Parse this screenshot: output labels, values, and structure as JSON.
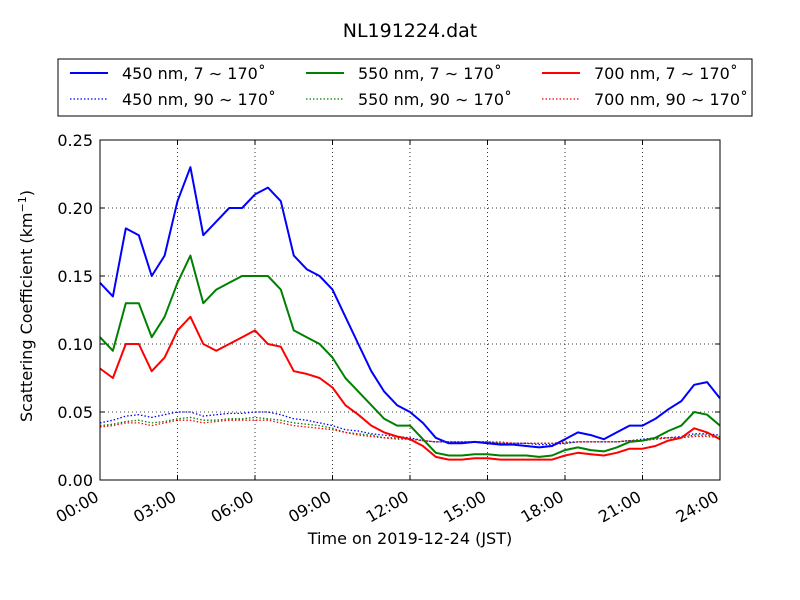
{
  "chart_data": {
    "type": "line",
    "title": "NL191224.dat",
    "xlabel": "Time on 2019-12-24 (JST)",
    "ylabel": "Scattering Coefficient (km",
    "ylabel_sup": "−1",
    "ylabel_close": ")",
    "xlim": [
      "00:00",
      "24:00"
    ],
    "ylim": [
      0.0,
      0.25
    ],
    "x_ticks": [
      "00:00",
      "03:00",
      "06:00",
      "09:00",
      "12:00",
      "15:00",
      "18:00",
      "21:00",
      "24:00"
    ],
    "y_ticks": [
      "0.00",
      "0.05",
      "0.10",
      "0.15",
      "0.20",
      "0.25"
    ],
    "grid": true,
    "legend_position": "top",
    "x_hours": [
      0.0,
      0.5,
      1.0,
      1.5,
      2.0,
      2.5,
      3.0,
      3.5,
      4.0,
      4.5,
      5.0,
      5.5,
      6.0,
      6.5,
      7.0,
      7.5,
      8.0,
      8.5,
      9.0,
      9.5,
      10.0,
      10.5,
      11.0,
      11.5,
      12.0,
      12.5,
      13.0,
      13.5,
      14.0,
      14.5,
      15.0,
      15.5,
      16.0,
      16.5,
      17.0,
      17.5,
      18.0,
      18.5,
      19.0,
      19.5,
      20.0,
      20.5,
      21.0,
      21.5,
      22.0,
      22.5,
      23.0,
      23.5,
      24.0
    ],
    "series": [
      {
        "name": "450 nm, 7 ∼ 170˚",
        "color": "#0000ff",
        "style": "solid",
        "values": [
          0.145,
          0.135,
          0.185,
          0.18,
          0.15,
          0.165,
          0.205,
          0.23,
          0.18,
          0.19,
          0.2,
          0.2,
          0.21,
          0.215,
          0.205,
          0.165,
          0.155,
          0.15,
          0.14,
          0.12,
          0.1,
          0.08,
          0.065,
          0.055,
          0.05,
          0.042,
          0.031,
          0.027,
          0.027,
          0.028,
          0.027,
          0.026,
          0.026,
          0.025,
          0.024,
          0.025,
          0.03,
          0.035,
          0.033,
          0.03,
          0.035,
          0.04,
          0.04,
          0.045,
          0.052,
          0.058,
          0.07,
          0.072,
          0.06
        ]
      },
      {
        "name": "550 nm, 7 ∼ 170˚",
        "color": "#008000",
        "style": "solid",
        "values": [
          0.105,
          0.095,
          0.13,
          0.13,
          0.105,
          0.12,
          0.145,
          0.165,
          0.13,
          0.14,
          0.145,
          0.15,
          0.15,
          0.15,
          0.14,
          0.11,
          0.105,
          0.1,
          0.09,
          0.075,
          0.065,
          0.055,
          0.045,
          0.04,
          0.04,
          0.03,
          0.02,
          0.018,
          0.018,
          0.019,
          0.019,
          0.018,
          0.018,
          0.018,
          0.017,
          0.018,
          0.022,
          0.024,
          0.022,
          0.021,
          0.024,
          0.028,
          0.029,
          0.031,
          0.036,
          0.04,
          0.05,
          0.048,
          0.04
        ]
      },
      {
        "name": "700 nm, 7 ∼ 170˚",
        "color": "#ff0000",
        "style": "solid",
        "values": [
          0.082,
          0.075,
          0.1,
          0.1,
          0.08,
          0.09,
          0.11,
          0.12,
          0.1,
          0.095,
          0.1,
          0.105,
          0.11,
          0.1,
          0.098,
          0.08,
          0.078,
          0.075,
          0.068,
          0.055,
          0.048,
          0.04,
          0.035,
          0.032,
          0.03,
          0.025,
          0.017,
          0.015,
          0.015,
          0.016,
          0.016,
          0.015,
          0.015,
          0.015,
          0.015,
          0.015,
          0.018,
          0.02,
          0.019,
          0.018,
          0.02,
          0.023,
          0.023,
          0.025,
          0.029,
          0.031,
          0.038,
          0.035,
          0.03
        ]
      },
      {
        "name": "450 nm, 90 ∼ 170˚",
        "color": "#0000ff",
        "style": "dotted",
        "values": [
          0.042,
          0.044,
          0.047,
          0.048,
          0.046,
          0.048,
          0.05,
          0.05,
          0.047,
          0.048,
          0.049,
          0.049,
          0.05,
          0.05,
          0.048,
          0.045,
          0.044,
          0.042,
          0.04,
          0.037,
          0.036,
          0.034,
          0.033,
          0.032,
          0.031,
          0.029,
          0.028,
          0.028,
          0.028,
          0.028,
          0.028,
          0.027,
          0.027,
          0.027,
          0.026,
          0.026,
          0.027,
          0.028,
          0.028,
          0.028,
          0.028,
          0.029,
          0.03,
          0.031,
          0.031,
          0.032,
          0.034,
          0.034,
          0.033
        ]
      },
      {
        "name": "550 nm, 90 ∼ 170˚",
        "color": "#008000",
        "style": "dotted",
        "values": [
          0.04,
          0.041,
          0.043,
          0.044,
          0.042,
          0.043,
          0.045,
          0.046,
          0.044,
          0.044,
          0.045,
          0.045,
          0.046,
          0.045,
          0.044,
          0.042,
          0.041,
          0.04,
          0.038,
          0.035,
          0.034,
          0.033,
          0.031,
          0.031,
          0.03,
          0.029,
          0.028,
          0.028,
          0.028,
          0.028,
          0.028,
          0.027,
          0.027,
          0.027,
          0.027,
          0.027,
          0.027,
          0.028,
          0.028,
          0.028,
          0.028,
          0.029,
          0.029,
          0.03,
          0.031,
          0.031,
          0.033,
          0.033,
          0.032
        ]
      },
      {
        "name": "700 nm, 90 ∼ 170˚",
        "color": "#ff0000",
        "style": "dotted",
        "values": [
          0.039,
          0.04,
          0.042,
          0.042,
          0.04,
          0.042,
          0.044,
          0.044,
          0.042,
          0.043,
          0.044,
          0.044,
          0.044,
          0.044,
          0.042,
          0.04,
          0.039,
          0.038,
          0.037,
          0.035,
          0.033,
          0.032,
          0.031,
          0.03,
          0.03,
          0.029,
          0.028,
          0.028,
          0.028,
          0.028,
          0.028,
          0.028,
          0.027,
          0.027,
          0.027,
          0.027,
          0.028,
          0.028,
          0.028,
          0.028,
          0.028,
          0.029,
          0.029,
          0.03,
          0.031,
          0.031,
          0.032,
          0.032,
          0.031
        ]
      }
    ]
  }
}
